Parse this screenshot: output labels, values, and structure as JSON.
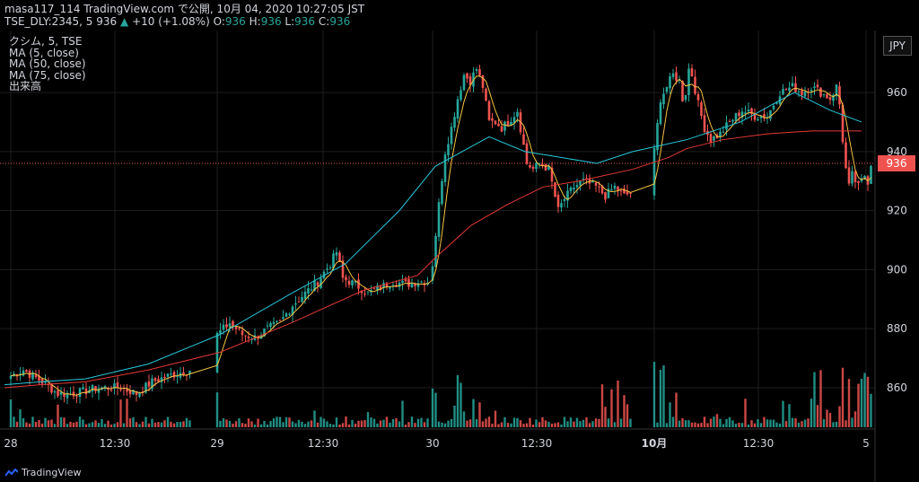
{
  "header": {
    "line1": "masa117_114 TradingView.com で公開, 10月 04, 2020 10:27:05 JST",
    "symbol": "TSE_DLY:2345, 5",
    "price": "936",
    "arrow": "▲",
    "change": "+10 (+1.08%)",
    "ohlc": [
      {
        "label": "O:",
        "value": "936"
      },
      {
        "label": "H:",
        "value": "936"
      },
      {
        "label": "L:",
        "value": "936"
      },
      {
        "label": "C:",
        "value": "936"
      }
    ]
  },
  "legend": {
    "title": "クシム, 5, TSE",
    "ma5": "MA (5, close)",
    "ma50": "MA (50, close)",
    "ma75": "MA (75, close)",
    "volume": "出来高"
  },
  "currency": "JPY",
  "last_price_tag": "936",
  "brand": "TradingView",
  "colors": {
    "up": "#26a69a",
    "down": "#ef5350",
    "ma5": "#f6c343",
    "ma50": "#26c6da",
    "ma75": "#e53935",
    "grid": "#1e1e1e",
    "last_price": "#ef5350"
  },
  "chart_data": {
    "type": "candlestick",
    "y_ticks": [
      860,
      880,
      900,
      920,
      940,
      960
    ],
    "ylim": [
      846,
      981
    ],
    "x_ticks": [
      "28",
      "12:30",
      "29",
      "12:30",
      "30",
      "12:30",
      "10月",
      "12:30",
      "5"
    ],
    "last_price": 936,
    "day_segments": [
      {
        "day": "28",
        "points": [
          [
            0,
            864
          ],
          [
            4,
            866
          ],
          [
            10,
            862
          ],
          [
            15,
            858
          ],
          [
            20,
            858
          ],
          [
            28,
            860
          ],
          [
            35,
            860
          ],
          [
            40,
            858
          ],
          [
            45,
            862
          ],
          [
            50,
            864
          ],
          [
            57,
            866
          ]
        ]
      },
      {
        "day": "29",
        "points": [
          [
            0,
            878
          ],
          [
            4,
            882
          ],
          [
            8,
            878
          ],
          [
            12,
            877
          ],
          [
            16,
            880
          ],
          [
            20,
            882
          ],
          [
            24,
            888
          ],
          [
            28,
            892
          ],
          [
            32,
            896
          ],
          [
            36,
            902
          ],
          [
            38,
            906
          ],
          [
            40,
            897
          ],
          [
            44,
            895
          ],
          [
            48,
            892
          ],
          [
            52,
            894
          ],
          [
            56,
            896
          ],
          [
            60,
            895
          ],
          [
            64,
            896
          ],
          [
            67,
            896
          ]
        ]
      },
      {
        "day": "30",
        "points": [
          [
            0,
            902
          ],
          [
            2,
            922
          ],
          [
            4,
            940
          ],
          [
            6,
            948
          ],
          [
            8,
            958
          ],
          [
            10,
            966
          ],
          [
            12,
            964
          ],
          [
            14,
            968
          ],
          [
            16,
            962
          ],
          [
            18,
            950
          ],
          [
            20,
            950
          ],
          [
            22,
            948
          ],
          [
            24,
            950
          ],
          [
            27,
            954
          ],
          [
            30,
            936
          ],
          [
            32,
            934
          ],
          [
            34,
            936
          ],
          [
            37,
            934
          ],
          [
            40,
            920
          ],
          [
            42,
            924
          ],
          [
            45,
            928
          ],
          [
            48,
            930
          ],
          [
            52,
            928
          ],
          [
            55,
            925
          ],
          [
            58,
            928
          ],
          [
            61,
            925
          ],
          [
            63,
            926
          ]
        ]
      },
      {
        "day": "10月",
        "points": [
          [
            0,
            940
          ],
          [
            2,
            958
          ],
          [
            4,
            962
          ],
          [
            6,
            966
          ],
          [
            8,
            964
          ],
          [
            9,
            958
          ],
          [
            10,
            960
          ],
          [
            11,
            968
          ],
          [
            12,
            966
          ],
          [
            14,
            956
          ],
          [
            16,
            948
          ],
          [
            18,
            944
          ],
          [
            21,
            946
          ],
          [
            24,
            950
          ],
          [
            28,
            954
          ],
          [
            32,
            952
          ],
          [
            36,
            952
          ],
          [
            40,
            960
          ],
          [
            44,
            962
          ],
          [
            47,
            960
          ],
          [
            50,
            962
          ],
          [
            53,
            960
          ],
          [
            56,
            958
          ],
          [
            58,
            962
          ],
          [
            59,
            956
          ],
          [
            60,
            944
          ],
          [
            61,
            934
          ],
          [
            62,
            928
          ],
          [
            63,
            932
          ],
          [
            65,
            928
          ],
          [
            67,
            932
          ],
          [
            68,
            930
          ],
          [
            69,
            936
          ]
        ]
      }
    ],
    "ma_series": [
      {
        "name": "MA (50, close)",
        "points": [
          [
            0,
            861
          ],
          [
            40,
            862
          ],
          [
            90,
            863
          ],
          [
            160,
            868
          ],
          [
            240,
            878
          ],
          [
            320,
            892
          ],
          [
            380,
            902
          ],
          [
            440,
            920
          ],
          [
            480,
            935
          ],
          [
            540,
            945
          ],
          [
            580,
            940
          ],
          [
            620,
            938
          ],
          [
            660,
            936
          ],
          [
            700,
            940
          ],
          [
            760,
            944
          ],
          [
            820,
            950
          ],
          [
            880,
            960
          ],
          [
            920,
            954
          ],
          [
            955,
            950
          ]
        ]
      },
      {
        "name": "MA (75, close)",
        "points": [
          [
            0,
            860
          ],
          [
            40,
            861
          ],
          [
            90,
            862
          ],
          [
            160,
            866
          ],
          [
            240,
            872
          ],
          [
            320,
            882
          ],
          [
            400,
            893
          ],
          [
            460,
            898
          ],
          [
            480,
            904
          ],
          [
            520,
            915
          ],
          [
            560,
            922
          ],
          [
            600,
            928
          ],
          [
            640,
            930
          ],
          [
            700,
            934
          ],
          [
            740,
            938
          ],
          [
            760,
            941
          ],
          [
            800,
            944
          ],
          [
            850,
            946
          ],
          [
            900,
            947
          ],
          [
            955,
            947
          ]
        ]
      }
    ],
    "volume": {
      "spike_days": [
        "30",
        "10月"
      ]
    }
  }
}
